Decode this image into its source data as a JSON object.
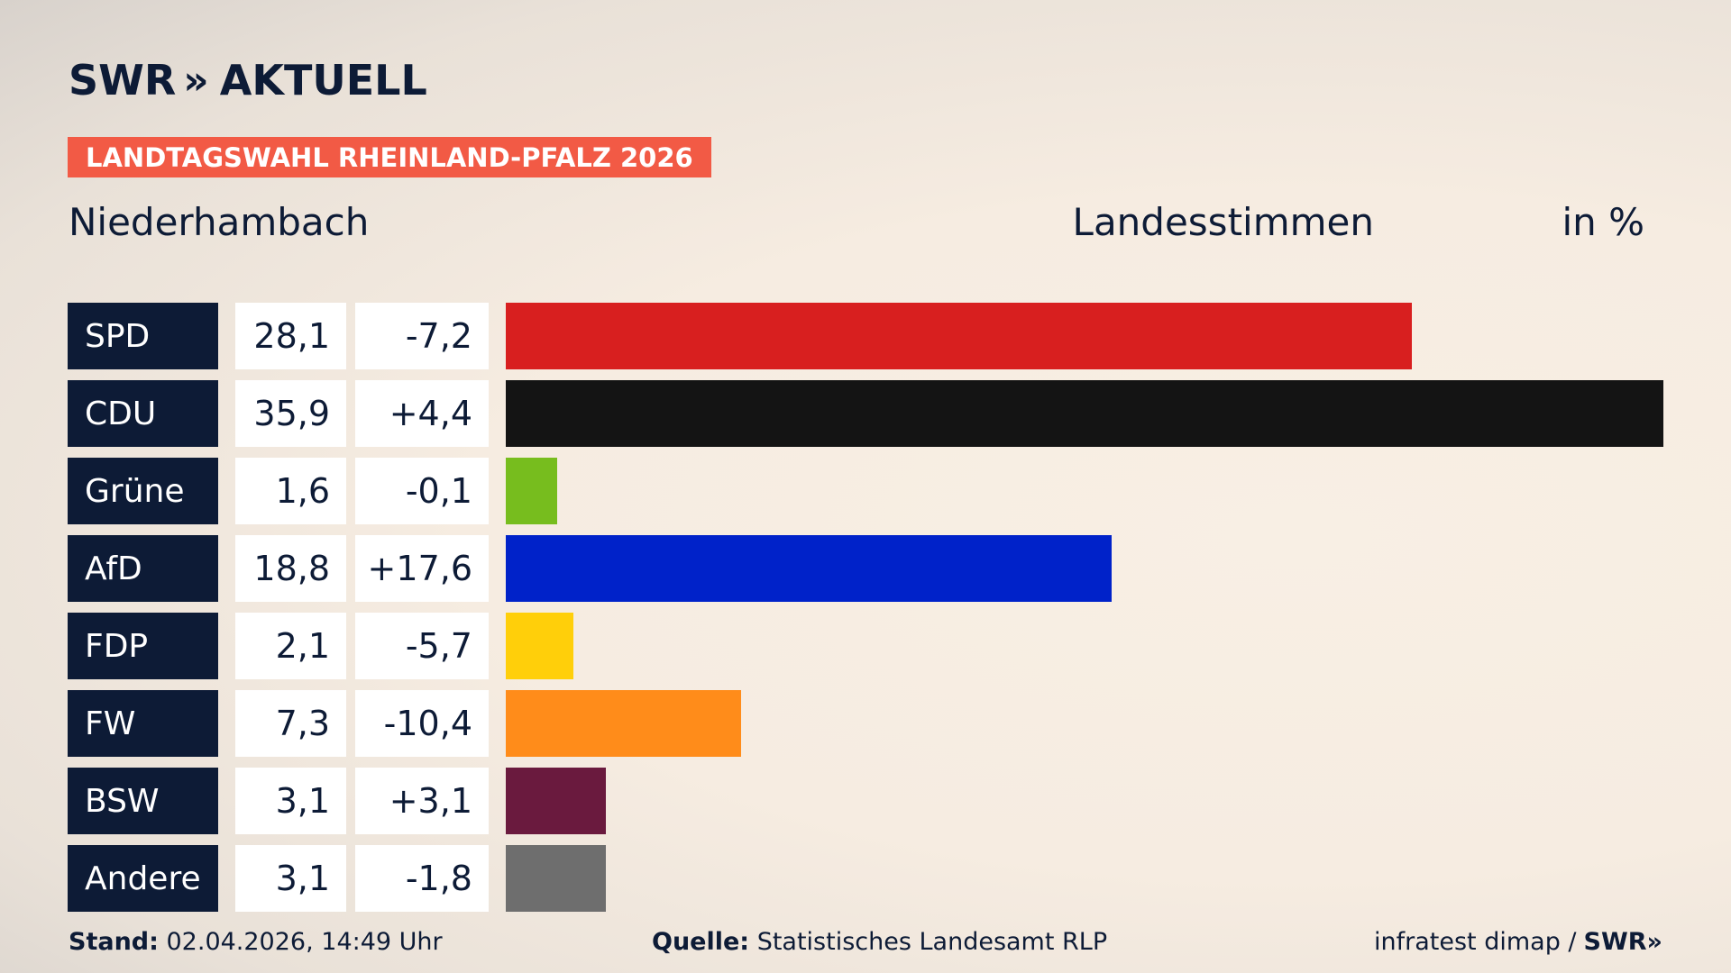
{
  "header": {
    "brand": "SWR",
    "brand_chevrons": "»",
    "product": "AKTUELL",
    "tag": "LANDTAGSWAHL RHEINLAND-PFALZ 2026"
  },
  "location": "Niederhambach",
  "metric": "Landesstimmen",
  "unit": "in %",
  "colors": {
    "navy": "#0d1b36",
    "tag_red": "#f25a45"
  },
  "chart_data": {
    "type": "bar",
    "orientation": "horizontal",
    "categories": [
      "SPD",
      "CDU",
      "Grüne",
      "AfD",
      "FDP",
      "FW",
      "BSW",
      "Andere"
    ],
    "values": [
      28.1,
      35.9,
      1.6,
      18.8,
      2.1,
      7.3,
      3.1,
      3.1
    ],
    "value_labels": [
      "28,1",
      "35,9",
      "1,6",
      "18,8",
      "2,1",
      "7,3",
      "3,1",
      "3,1"
    ],
    "changes": [
      -7.2,
      4.4,
      -0.1,
      17.6,
      -5.7,
      -10.4,
      3.1,
      -1.8
    ],
    "change_labels": [
      "-7,2",
      "+4,4",
      "-0,1",
      "+17,6",
      "-5,7",
      "-10,4",
      "+3,1",
      "-1,8"
    ],
    "bar_colors": [
      "#d81f1f",
      "#141414",
      "#77bd1e",
      "#0022c9",
      "#ffcf0a",
      "#ff8c1a",
      "#6a1a3e",
      "#6e6e6e"
    ],
    "xlim": [
      0,
      35.9
    ],
    "grid": false
  },
  "footer": {
    "stand_label": "Stand:",
    "stand_value": " 02.04.2026, 14:49 Uhr",
    "source_label": "Quelle:",
    "source_value": " Statistisches Landesamt RLP",
    "credit": "infratest dimap /",
    "credit_brand": "SWR»"
  }
}
